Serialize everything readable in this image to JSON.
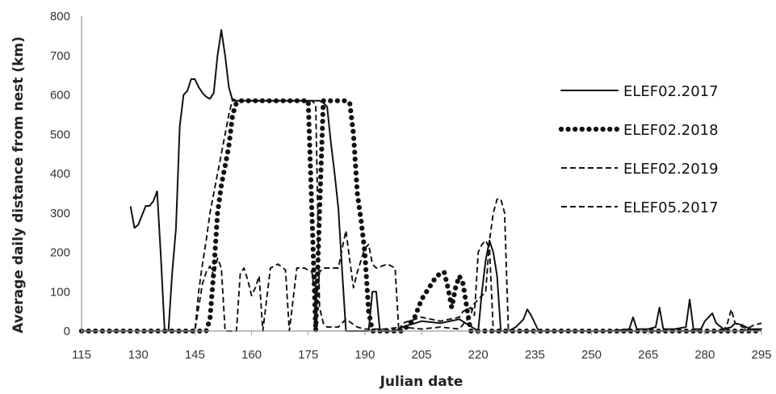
{
  "chart_data": {
    "type": "line",
    "title": "",
    "xlabel": "Julian date",
    "ylabel": "Average daily distance from nest (km)",
    "xlim": [
      115,
      295
    ],
    "ylim": [
      0,
      800
    ],
    "x_ticks": [
      115,
      130,
      145,
      160,
      175,
      190,
      205,
      220,
      235,
      250,
      265,
      280,
      295
    ],
    "y_ticks": [
      0,
      100,
      200,
      300,
      400,
      500,
      600,
      700,
      800
    ],
    "grid": false,
    "legend_position": "right",
    "series": [
      {
        "name": "ELEF02.2017",
        "style": "solid",
        "color": "#111111",
        "points": [
          [
            128,
            315
          ],
          [
            129,
            262
          ],
          [
            130,
            270
          ],
          [
            132,
            318
          ],
          [
            133,
            318
          ],
          [
            134,
            330
          ],
          [
            135,
            355
          ],
          [
            136,
            190
          ],
          [
            137,
            0
          ],
          [
            138,
            0
          ],
          [
            139,
            150
          ],
          [
            140,
            260
          ],
          [
            141,
            520
          ],
          [
            142,
            600
          ],
          [
            143,
            610
          ],
          [
            144,
            640
          ],
          [
            145,
            640
          ],
          [
            146,
            620
          ],
          [
            147,
            605
          ],
          [
            148,
            595
          ],
          [
            149,
            590
          ],
          [
            150,
            605
          ],
          [
            151,
            700
          ],
          [
            152,
            765
          ],
          [
            153,
            700
          ],
          [
            154,
            620
          ],
          [
            155,
            585
          ],
          [
            160,
            585
          ],
          [
            170,
            585
          ],
          [
            178,
            585
          ],
          [
            179,
            580
          ],
          [
            180,
            570
          ],
          [
            181,
            480
          ],
          [
            182,
            400
          ],
          [
            183,
            310
          ],
          [
            184,
            150
          ],
          [
            185,
            0
          ],
          [
            190,
            0
          ],
          [
            191,
            0
          ],
          [
            192,
            100
          ],
          [
            193,
            100
          ],
          [
            194,
            0
          ],
          [
            198,
            0
          ],
          [
            200,
            10
          ],
          [
            205,
            25
          ],
          [
            210,
            20
          ],
          [
            215,
            30
          ],
          [
            220,
            0
          ],
          [
            221,
            100
          ],
          [
            222,
            180
          ],
          [
            223,
            230
          ],
          [
            224,
            200
          ],
          [
            225,
            140
          ],
          [
            226,
            0
          ],
          [
            228,
            0
          ],
          [
            230,
            10
          ],
          [
            232,
            30
          ],
          [
            233,
            55
          ],
          [
            234,
            40
          ],
          [
            236,
            0
          ],
          [
            240,
            0
          ],
          [
            250,
            0
          ],
          [
            255,
            0
          ],
          [
            260,
            5
          ],
          [
            261,
            35
          ],
          [
            262,
            5
          ],
          [
            265,
            5
          ],
          [
            267,
            10
          ],
          [
            268,
            60
          ],
          [
            269,
            5
          ],
          [
            272,
            5
          ],
          [
            275,
            10
          ],
          [
            276,
            80
          ],
          [
            277,
            5
          ],
          [
            279,
            5
          ],
          [
            280,
            25
          ],
          [
            282,
            45
          ],
          [
            283,
            20
          ],
          [
            285,
            5
          ],
          [
            287,
            10
          ],
          [
            288,
            20
          ],
          [
            290,
            15
          ],
          [
            292,
            5
          ],
          [
            295,
            5
          ]
        ]
      },
      {
        "name": "ELEF02.2018",
        "style": "dotted",
        "color": "#111111",
        "points": [
          [
            115,
            0
          ],
          [
            120,
            0
          ],
          [
            125,
            0
          ],
          [
            130,
            0
          ],
          [
            135,
            0
          ],
          [
            140,
            0
          ],
          [
            145,
            0
          ],
          [
            148,
            0
          ],
          [
            149,
            30
          ],
          [
            150,
            150
          ],
          [
            151,
            300
          ],
          [
            152,
            370
          ],
          [
            153,
            420
          ],
          [
            154,
            470
          ],
          [
            155,
            550
          ],
          [
            156,
            580
          ],
          [
            157,
            585
          ],
          [
            160,
            585
          ],
          [
            165,
            585
          ],
          [
            170,
            585
          ],
          [
            175,
            585
          ],
          [
            176,
            300
          ],
          [
            177,
            0
          ],
          [
            178,
            300
          ],
          [
            179,
            585
          ],
          [
            180,
            585
          ],
          [
            185,
            585
          ],
          [
            186,
            580
          ],
          [
            187,
            500
          ],
          [
            188,
            350
          ],
          [
            189,
            280
          ],
          [
            190,
            200
          ],
          [
            191,
            50
          ],
          [
            192,
            0
          ],
          [
            195,
            0
          ],
          [
            200,
            0
          ],
          [
            203,
            30
          ],
          [
            205,
            80
          ],
          [
            207,
            110
          ],
          [
            209,
            140
          ],
          [
            211,
            150
          ],
          [
            212,
            110
          ],
          [
            213,
            60
          ],
          [
            214,
            110
          ],
          [
            215,
            140
          ],
          [
            216,
            120
          ],
          [
            217,
            60
          ],
          [
            218,
            0
          ],
          [
            220,
            0
          ],
          [
            225,
            0
          ],
          [
            230,
            0
          ],
          [
            240,
            0
          ],
          [
            250,
            0
          ],
          [
            260,
            0
          ],
          [
            270,
            0
          ],
          [
            280,
            0
          ],
          [
            285,
            0
          ],
          [
            290,
            0
          ],
          [
            295,
            0
          ]
        ]
      },
      {
        "name": "ELEF02.2019",
        "style": "dashed",
        "color": "#111111",
        "points": [
          [
            115,
            0
          ],
          [
            120,
            0
          ],
          [
            125,
            0
          ],
          [
            130,
            0
          ],
          [
            135,
            0
          ],
          [
            140,
            0
          ],
          [
            145,
            0
          ],
          [
            146,
            60
          ],
          [
            147,
            120
          ],
          [
            148,
            150
          ],
          [
            149,
            165
          ],
          [
            150,
            140
          ],
          [
            151,
            185
          ],
          [
            152,
            160
          ],
          [
            153,
            0
          ],
          [
            156,
            0
          ],
          [
            157,
            145
          ],
          [
            158,
            160
          ],
          [
            159,
            130
          ],
          [
            160,
            90
          ],
          [
            161,
            110
          ],
          [
            162,
            140
          ],
          [
            163,
            0
          ],
          [
            165,
            160
          ],
          [
            167,
            170
          ],
          [
            169,
            155
          ],
          [
            170,
            0
          ],
          [
            172,
            160
          ],
          [
            174,
            160
          ],
          [
            176,
            150
          ],
          [
            177,
            70
          ],
          [
            178,
            150
          ],
          [
            179,
            160
          ],
          [
            180,
            160
          ],
          [
            183,
            160
          ],
          [
            184,
            210
          ],
          [
            185,
            255
          ],
          [
            186,
            180
          ],
          [
            187,
            110
          ],
          [
            188,
            150
          ],
          [
            189,
            180
          ],
          [
            190,
            210
          ],
          [
            191,
            220
          ],
          [
            192,
            170
          ],
          [
            193,
            160
          ],
          [
            196,
            170
          ],
          [
            198,
            160
          ],
          [
            199,
            0
          ],
          [
            200,
            20
          ],
          [
            205,
            35
          ],
          [
            210,
            25
          ],
          [
            215,
            35
          ],
          [
            216,
            50
          ],
          [
            218,
            60
          ],
          [
            219,
            40
          ],
          [
            220,
            200
          ],
          [
            221,
            220
          ],
          [
            222,
            230
          ],
          [
            223,
            210
          ],
          [
            224,
            0
          ],
          [
            226,
            0
          ],
          [
            228,
            0
          ],
          [
            230,
            0
          ],
          [
            240,
            0
          ],
          [
            250,
            0
          ],
          [
            260,
            0
          ],
          [
            270,
            0
          ],
          [
            280,
            0
          ],
          [
            285,
            0
          ],
          [
            286,
            20
          ],
          [
            287,
            55
          ],
          [
            288,
            20
          ],
          [
            290,
            10
          ],
          [
            292,
            5
          ],
          [
            295,
            0
          ]
        ]
      },
      {
        "name": "ELEF05.2017",
        "style": "dashed",
        "color": "#111111",
        "points": [
          [
            115,
            0
          ],
          [
            120,
            0
          ],
          [
            125,
            0
          ],
          [
            130,
            0
          ],
          [
            135,
            0
          ],
          [
            140,
            0
          ],
          [
            145,
            0
          ],
          [
            146,
            100
          ],
          [
            147,
            170
          ],
          [
            148,
            230
          ],
          [
            149,
            300
          ],
          [
            150,
            350
          ],
          [
            151,
            400
          ],
          [
            152,
            450
          ],
          [
            153,
            500
          ],
          [
            154,
            550
          ],
          [
            155,
            590
          ],
          [
            156,
            585
          ],
          [
            160,
            585
          ],
          [
            165,
            585
          ],
          [
            170,
            585
          ],
          [
            175,
            585
          ],
          [
            176,
            585
          ],
          [
            177,
            575
          ],
          [
            178,
            60
          ],
          [
            179,
            20
          ],
          [
            180,
            10
          ],
          [
            183,
            10
          ],
          [
            185,
            30
          ],
          [
            188,
            10
          ],
          [
            190,
            5
          ],
          [
            195,
            5
          ],
          [
            200,
            10
          ],
          [
            205,
            5
          ],
          [
            210,
            10
          ],
          [
            215,
            5
          ],
          [
            218,
            40
          ],
          [
            219,
            70
          ],
          [
            220,
            80
          ],
          [
            222,
            100
          ],
          [
            223,
            230
          ],
          [
            224,
            300
          ],
          [
            225,
            335
          ],
          [
            226,
            335
          ],
          [
            227,
            300
          ],
          [
            228,
            0
          ],
          [
            229,
            0
          ],
          [
            230,
            0
          ],
          [
            240,
            0
          ],
          [
            250,
            0
          ],
          [
            260,
            0
          ],
          [
            270,
            0
          ],
          [
            280,
            0
          ],
          [
            290,
            0
          ],
          [
            293,
            15
          ],
          [
            295,
            20
          ]
        ]
      }
    ]
  }
}
